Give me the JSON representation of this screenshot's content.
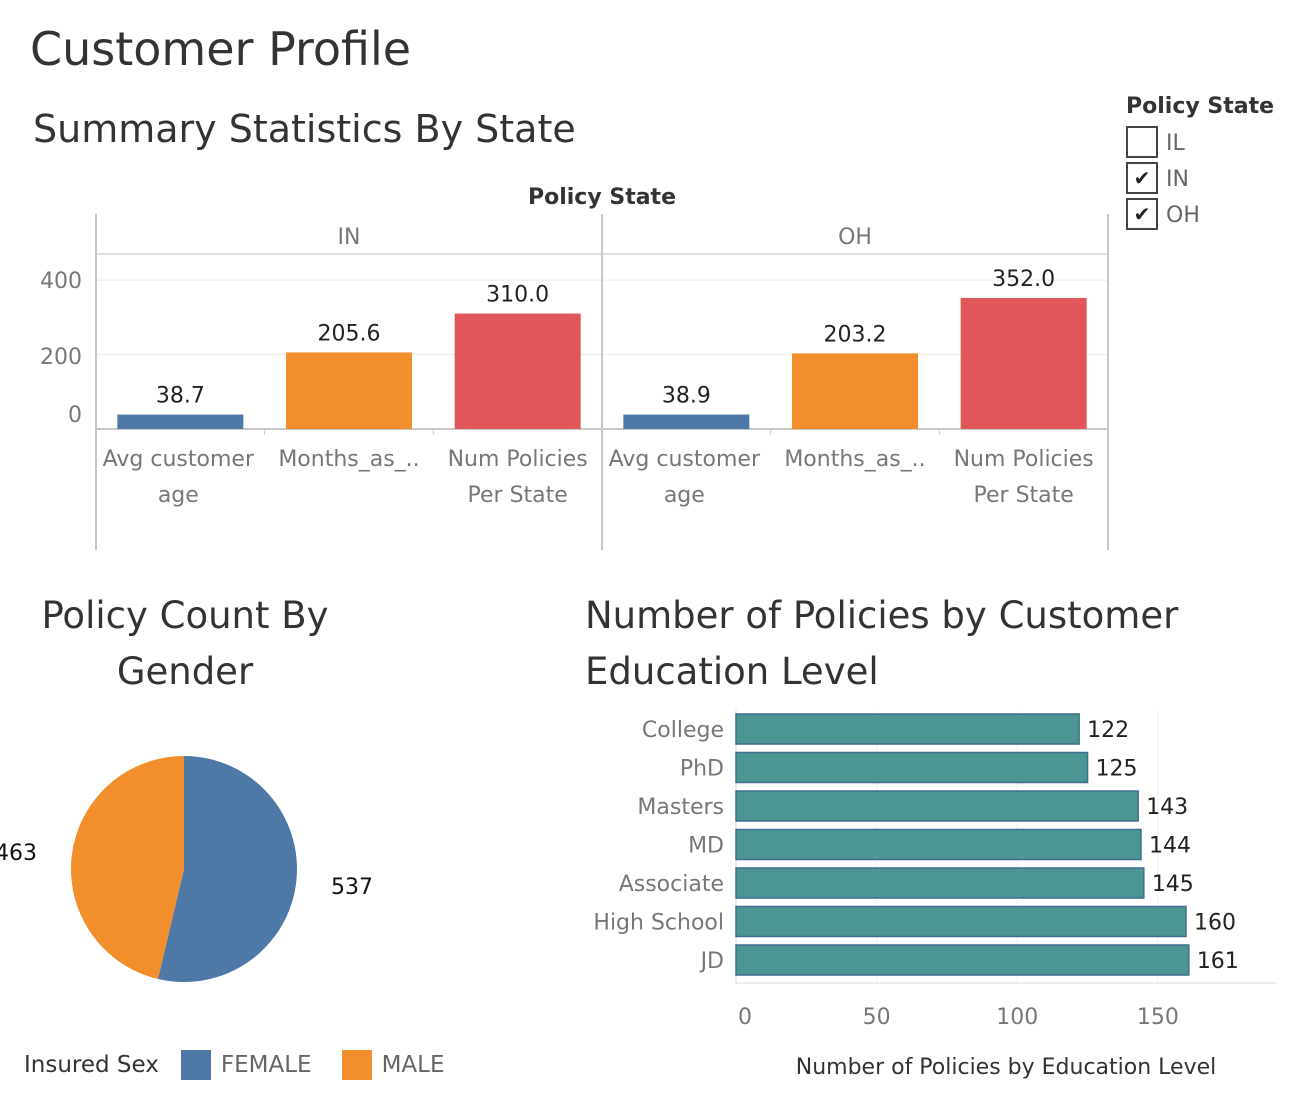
{
  "title": "Customer Profile",
  "summary": {
    "title": "Summary Statistics By State",
    "header": "Policy State",
    "panes": [
      "IN",
      "OH"
    ],
    "categories": [
      "Avg customer age",
      "Months_as_..",
      "Num Policies Per State"
    ],
    "category_lines": [
      [
        "Avg customer",
        "age"
      ],
      [
        "Months_as_.."
      ],
      [
        "Num Policies",
        "Per State"
      ]
    ]
  },
  "filter": {
    "title": "Policy State",
    "options": [
      {
        "label": "IL",
        "checked": false
      },
      {
        "label": "IN",
        "checked": true
      },
      {
        "label": "OH",
        "checked": true
      }
    ],
    "check_glyph": "✔"
  },
  "gender": {
    "title_line1": "Policy Count By",
    "title_line2": "Gender",
    "legend_title": "Insured Sex",
    "legend": [
      {
        "name": "FEMALE",
        "color": "#4e79a7"
      },
      {
        "name": "MALE",
        "color": "#f28e2b"
      }
    ]
  },
  "education": {
    "title_line1": "Number of Policies by Customer",
    "title_line2": "Education Level",
    "xlabel": "Number of Policies by Education Level"
  },
  "colors": {
    "blue": "#4e79a7",
    "orange": "#f28e2b",
    "red": "#e15759",
    "teal": "#4b9693"
  },
  "chart_data": [
    {
      "type": "bar",
      "title": "Summary Statistics By State",
      "categories": [
        "Avg customer age",
        "Months_as_..",
        "Num Policies Per State"
      ],
      "series": [
        {
          "name": "IN",
          "values": [
            38.7,
            205.6,
            310.0
          ],
          "labels": [
            "38.7",
            "205.6",
            "310.0"
          ]
        },
        {
          "name": "OH",
          "values": [
            38.9,
            203.2,
            352.0
          ],
          "labels": [
            "38.9",
            "203.2",
            "352.0"
          ]
        }
      ],
      "bar_colors": [
        "#4e79a7",
        "#f28e2b",
        "#e15759"
      ],
      "ylim": [
        0,
        470
      ],
      "yticks": [
        0,
        200,
        400
      ],
      "ylabel": "",
      "grid": true
    },
    {
      "type": "pie",
      "title": "Policy Count By Gender",
      "slices": [
        {
          "name": "FEMALE",
          "value": 537,
          "color": "#4e79a7"
        },
        {
          "name": "MALE",
          "value": 463,
          "color": "#f28e2b"
        }
      ],
      "legend": "bottom-left"
    },
    {
      "type": "bar",
      "orientation": "horizontal",
      "title": "Number of Policies by Customer Education Level",
      "categories": [
        "College",
        "PhD",
        "Masters",
        "MD",
        "Associate",
        "High School",
        "JD"
      ],
      "values": [
        122,
        125,
        143,
        144,
        145,
        160,
        161
      ],
      "xlabel": "Number of Policies by Education Level",
      "xlim": [
        0,
        192
      ],
      "xticks": [
        0,
        50,
        100,
        150
      ],
      "color": "#4b9693"
    }
  ]
}
